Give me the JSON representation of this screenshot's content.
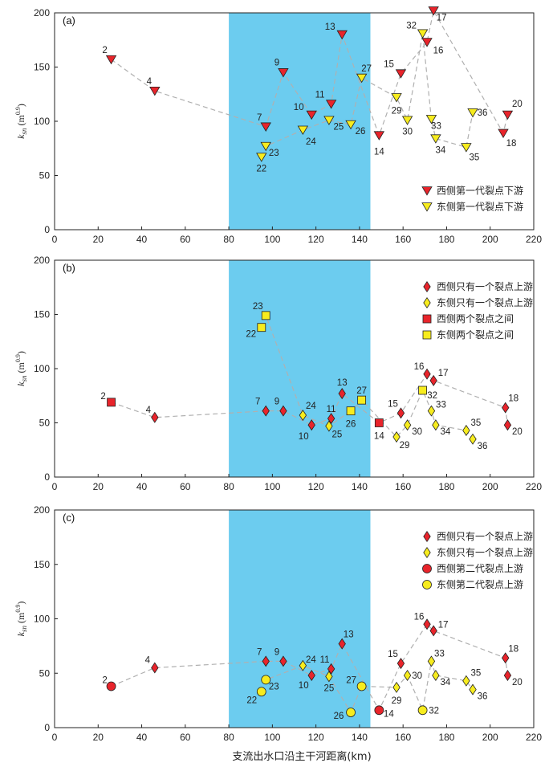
{
  "figure": {
    "xlabel": "支流出水口沿主干河距离(km)",
    "colors": {
      "west": "#e8242b",
      "east": "#f7ec1e",
      "band": "#6cccef",
      "line": "#b0b0b0"
    }
  },
  "chart_data": [
    {
      "type": "scatter",
      "panel": "(a)",
      "ylabel": "k_sn (m^0.9)",
      "xlim": [
        0,
        220
      ],
      "ylim": [
        0,
        200
      ],
      "xticks": [
        "0",
        "20",
        "40",
        "60",
        "80",
        "100",
        "120",
        "140",
        "160",
        "180",
        "200",
        "220"
      ],
      "yticks": [
        "0",
        "50",
        "100",
        "150",
        "200"
      ],
      "shaded_range": [
        80,
        145
      ],
      "legend": [
        {
          "label": "西侧第一代裂点下游",
          "marker": "triangle-down",
          "color": "west"
        },
        {
          "label": "东侧第一代裂点下游",
          "marker": "triangle-down",
          "color": "east"
        }
      ],
      "points": [
        {
          "id": "2",
          "x": 26,
          "y": 157,
          "marker": "triangle-down",
          "color": "west"
        },
        {
          "id": "4",
          "x": 46,
          "y": 128,
          "marker": "triangle-down",
          "color": "west"
        },
        {
          "id": "7",
          "x": 97,
          "y": 95,
          "marker": "triangle-down",
          "color": "west"
        },
        {
          "id": "9",
          "x": 105,
          "y": 145,
          "marker": "triangle-down",
          "color": "west"
        },
        {
          "id": "10",
          "x": 118,
          "y": 106,
          "marker": "triangle-down",
          "color": "west"
        },
        {
          "id": "11",
          "x": 127,
          "y": 116,
          "marker": "triangle-down",
          "color": "west"
        },
        {
          "id": "13",
          "x": 132,
          "y": 180,
          "marker": "triangle-down",
          "color": "west"
        },
        {
          "id": "14",
          "x": 149,
          "y": 87,
          "marker": "triangle-down",
          "color": "west"
        },
        {
          "id": "15",
          "x": 159,
          "y": 144,
          "marker": "triangle-down",
          "color": "west"
        },
        {
          "id": "16",
          "x": 171,
          "y": 173,
          "marker": "triangle-down",
          "color": "west"
        },
        {
          "id": "17",
          "x": 174,
          "y": 202,
          "marker": "triangle-down",
          "color": "west"
        },
        {
          "id": "18",
          "x": 206,
          "y": 89,
          "marker": "triangle-down",
          "color": "west"
        },
        {
          "id": "20",
          "x": 208,
          "y": 106,
          "marker": "triangle-down",
          "color": "west"
        },
        {
          "id": "22",
          "x": 95,
          "y": 67,
          "marker": "triangle-down",
          "color": "east"
        },
        {
          "id": "23",
          "x": 97,
          "y": 77,
          "marker": "triangle-down",
          "color": "east"
        },
        {
          "id": "24",
          "x": 114,
          "y": 92,
          "marker": "triangle-down",
          "color": "east"
        },
        {
          "id": "25",
          "x": 126,
          "y": 101,
          "marker": "triangle-down",
          "color": "east"
        },
        {
          "id": "26",
          "x": 136,
          "y": 97,
          "marker": "triangle-down",
          "color": "east"
        },
        {
          "id": "27",
          "x": 141,
          "y": 140,
          "marker": "triangle-down",
          "color": "east"
        },
        {
          "id": "29",
          "x": 157,
          "y": 122,
          "marker": "triangle-down",
          "color": "east"
        },
        {
          "id": "30",
          "x": 162,
          "y": 101,
          "marker": "triangle-down",
          "color": "east"
        },
        {
          "id": "32",
          "x": 169,
          "y": 181,
          "marker": "triangle-down",
          "color": "east"
        },
        {
          "id": "33",
          "x": 173,
          "y": 102,
          "marker": "triangle-down",
          "color": "east"
        },
        {
          "id": "34",
          "x": 175,
          "y": 84,
          "marker": "triangle-down",
          "color": "east"
        },
        {
          "id": "35",
          "x": 189,
          "y": 76,
          "marker": "triangle-down",
          "color": "east"
        },
        {
          "id": "36",
          "x": 192,
          "y": 108,
          "marker": "triangle-down",
          "color": "east"
        }
      ],
      "connections": [
        "2",
        "4",
        "7",
        "9",
        "10",
        "11",
        "13",
        "14",
        "15",
        "16",
        "17",
        "18",
        "20"
      ],
      "connections_2": [
        "22",
        "23",
        "24",
        "25",
        "26",
        "27",
        "29",
        "30",
        "32",
        "33",
        "34",
        "35",
        "36"
      ]
    },
    {
      "type": "scatter",
      "panel": "(b)",
      "ylabel": "k_sn (m^0.9)",
      "xlim": [
        0,
        220
      ],
      "ylim": [
        0,
        200
      ],
      "xticks": [
        "0",
        "20",
        "40",
        "60",
        "80",
        "100",
        "120",
        "140",
        "160",
        "180",
        "200",
        "220"
      ],
      "yticks": [
        "0",
        "50",
        "100",
        "150",
        "200"
      ],
      "shaded_range": [
        80,
        145
      ],
      "legend": [
        {
          "label": "西侧只有一个裂点上游",
          "marker": "diamond",
          "color": "west"
        },
        {
          "label": "东侧只有一个裂点上游",
          "marker": "diamond",
          "color": "east"
        },
        {
          "label": "西侧两个裂点之间",
          "marker": "square",
          "color": "west"
        },
        {
          "label": "东侧两个裂点之间",
          "marker": "square",
          "color": "east"
        }
      ],
      "points": [
        {
          "id": "2",
          "x": 26,
          "y": 69,
          "marker": "square",
          "color": "west"
        },
        {
          "id": "4",
          "x": 46,
          "y": 55,
          "marker": "diamond",
          "color": "west"
        },
        {
          "id": "7",
          "x": 97,
          "y": 61,
          "marker": "diamond",
          "color": "west"
        },
        {
          "id": "9",
          "x": 105,
          "y": 61,
          "marker": "diamond",
          "color": "west"
        },
        {
          "id": "10",
          "x": 118,
          "y": 48,
          "marker": "diamond",
          "color": "west"
        },
        {
          "id": "11",
          "x": 127,
          "y": 54,
          "marker": "diamond",
          "color": "west"
        },
        {
          "id": "13",
          "x": 132,
          "y": 77,
          "marker": "diamond",
          "color": "west"
        },
        {
          "id": "14",
          "x": 149,
          "y": 50,
          "marker": "square",
          "color": "west"
        },
        {
          "id": "15",
          "x": 159,
          "y": 59,
          "marker": "diamond",
          "color": "west"
        },
        {
          "id": "16",
          "x": 171,
          "y": 95,
          "marker": "diamond",
          "color": "west"
        },
        {
          "id": "17",
          "x": 174,
          "y": 89,
          "marker": "diamond",
          "color": "west"
        },
        {
          "id": "18",
          "x": 207,
          "y": 64,
          "marker": "diamond",
          "color": "west"
        },
        {
          "id": "20",
          "x": 208,
          "y": 48,
          "marker": "diamond",
          "color": "west"
        },
        {
          "id": "22",
          "x": 95,
          "y": 138,
          "marker": "square",
          "color": "east"
        },
        {
          "id": "23",
          "x": 97,
          "y": 149,
          "marker": "square",
          "color": "east"
        },
        {
          "id": "24",
          "x": 114,
          "y": 57,
          "marker": "diamond",
          "color": "east"
        },
        {
          "id": "25",
          "x": 126,
          "y": 47,
          "marker": "diamond",
          "color": "east"
        },
        {
          "id": "26",
          "x": 136,
          "y": 61,
          "marker": "square",
          "color": "east"
        },
        {
          "id": "27",
          "x": 141,
          "y": 71,
          "marker": "square",
          "color": "east"
        },
        {
          "id": "29",
          "x": 157,
          "y": 37,
          "marker": "diamond",
          "color": "east"
        },
        {
          "id": "30",
          "x": 162,
          "y": 48,
          "marker": "diamond",
          "color": "east"
        },
        {
          "id": "32",
          "x": 169,
          "y": 80,
          "marker": "square",
          "color": "east"
        },
        {
          "id": "33",
          "x": 173,
          "y": 61,
          "marker": "diamond",
          "color": "east"
        },
        {
          "id": "34",
          "x": 175,
          "y": 48,
          "marker": "diamond",
          "color": "east"
        },
        {
          "id": "35",
          "x": 189,
          "y": 43,
          "marker": "diamond",
          "color": "east"
        },
        {
          "id": "36",
          "x": 192,
          "y": 35,
          "marker": "diamond",
          "color": "east"
        }
      ],
      "connections": [
        "2",
        "4",
        "7",
        "9",
        "10",
        "11",
        "13",
        "14",
        "15",
        "16",
        "17",
        "18",
        "20"
      ],
      "connections_2": [
        "22",
        "23",
        "24",
        "25",
        "26",
        "27",
        "29",
        "30",
        "32",
        "33",
        "34",
        "35",
        "36"
      ]
    },
    {
      "type": "scatter",
      "panel": "(c)",
      "ylabel": "k_sn (m^0.9)",
      "xlim": [
        0,
        220
      ],
      "ylim": [
        0,
        200
      ],
      "xticks": [
        "0",
        "20",
        "40",
        "60",
        "80",
        "100",
        "120",
        "140",
        "160",
        "180",
        "200",
        "220"
      ],
      "yticks": [
        "0",
        "50",
        "100",
        "150",
        "200"
      ],
      "shaded_range": [
        80,
        145
      ],
      "legend": [
        {
          "label": "西侧只有一个裂点上游",
          "marker": "diamond",
          "color": "west"
        },
        {
          "label": "东侧只有一个裂点上游",
          "marker": "diamond",
          "color": "east"
        },
        {
          "label": "西侧第二代裂点上游",
          "marker": "circle",
          "color": "west"
        },
        {
          "label": "东侧第二代裂点上游",
          "marker": "circle",
          "color": "east"
        }
      ],
      "points": [
        {
          "id": "2",
          "x": 26,
          "y": 38,
          "marker": "circle",
          "color": "west"
        },
        {
          "id": "4",
          "x": 46,
          "y": 55,
          "marker": "diamond",
          "color": "west"
        },
        {
          "id": "7",
          "x": 97,
          "y": 61,
          "marker": "diamond",
          "color": "west"
        },
        {
          "id": "9",
          "x": 105,
          "y": 61,
          "marker": "diamond",
          "color": "west"
        },
        {
          "id": "10",
          "x": 118,
          "y": 48,
          "marker": "diamond",
          "color": "west"
        },
        {
          "id": "11",
          "x": 127,
          "y": 54,
          "marker": "diamond",
          "color": "west"
        },
        {
          "id": "13",
          "x": 132,
          "y": 77,
          "marker": "diamond",
          "color": "west"
        },
        {
          "id": "14",
          "x": 149,
          "y": 16,
          "marker": "circle",
          "color": "west"
        },
        {
          "id": "15",
          "x": 159,
          "y": 59,
          "marker": "diamond",
          "color": "west"
        },
        {
          "id": "16",
          "x": 171,
          "y": 95,
          "marker": "diamond",
          "color": "west"
        },
        {
          "id": "17",
          "x": 174,
          "y": 89,
          "marker": "diamond",
          "color": "west"
        },
        {
          "id": "18",
          "x": 207,
          "y": 64,
          "marker": "diamond",
          "color": "west"
        },
        {
          "id": "20",
          "x": 208,
          "y": 48,
          "marker": "diamond",
          "color": "west"
        },
        {
          "id": "22",
          "x": 95,
          "y": 33,
          "marker": "circle",
          "color": "east"
        },
        {
          "id": "23",
          "x": 97,
          "y": 44,
          "marker": "circle",
          "color": "east"
        },
        {
          "id": "24",
          "x": 114,
          "y": 57,
          "marker": "diamond",
          "color": "east"
        },
        {
          "id": "25",
          "x": 126,
          "y": 47,
          "marker": "diamond",
          "color": "east"
        },
        {
          "id": "26",
          "x": 136,
          "y": 14,
          "marker": "circle",
          "color": "east"
        },
        {
          "id": "27",
          "x": 141,
          "y": 38,
          "marker": "circle",
          "color": "east"
        },
        {
          "id": "29",
          "x": 157,
          "y": 37,
          "marker": "diamond",
          "color": "east"
        },
        {
          "id": "30",
          "x": 162,
          "y": 48,
          "marker": "diamond",
          "color": "east"
        },
        {
          "id": "32",
          "x": 169,
          "y": 16,
          "marker": "circle",
          "color": "east"
        },
        {
          "id": "33",
          "x": 173,
          "y": 61,
          "marker": "diamond",
          "color": "east"
        },
        {
          "id": "34",
          "x": 175,
          "y": 48,
          "marker": "diamond",
          "color": "east"
        },
        {
          "id": "35",
          "x": 189,
          "y": 43,
          "marker": "diamond",
          "color": "east"
        },
        {
          "id": "36",
          "x": 192,
          "y": 35,
          "marker": "diamond",
          "color": "east"
        }
      ],
      "connections": [
        "2",
        "4",
        "7",
        "9",
        "10",
        "11",
        "13",
        "14",
        "15",
        "16",
        "17",
        "18",
        "20"
      ],
      "connections_2": [
        "22",
        "23",
        "24",
        "25",
        "26",
        "27",
        "29",
        "30",
        "32",
        "33",
        "34",
        "35",
        "36"
      ]
    }
  ]
}
